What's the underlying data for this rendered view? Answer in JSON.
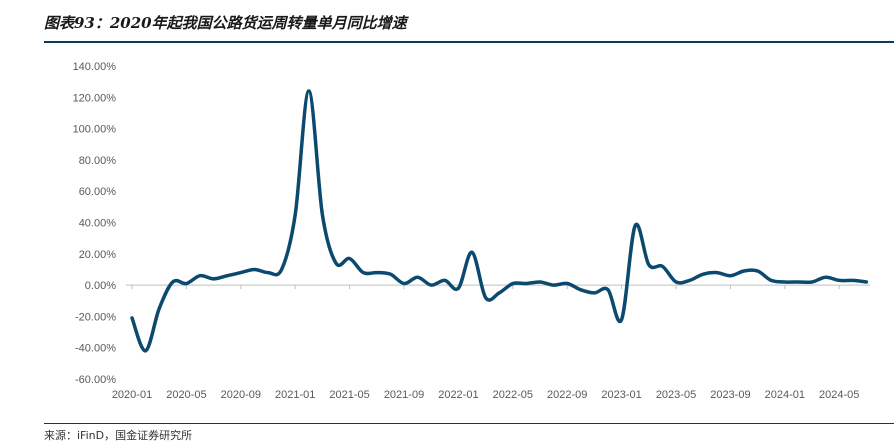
{
  "figure": {
    "title": "图表93：2020年起我国公路货运周转量单月同比增速",
    "source": "来源：iFinD，国金证券研究所"
  },
  "colors": {
    "line": "#0b4a6e",
    "axis": "#bfbfbf",
    "rule": "#0b3a5a"
  },
  "chart_data": {
    "type": "line",
    "title": "",
    "xlabel": "",
    "ylabel": "",
    "ylim": [
      -0.6,
      1.4
    ],
    "y_ticks": [
      -0.6,
      -0.4,
      -0.2,
      0.0,
      0.2,
      0.4,
      0.6,
      0.8,
      1.0,
      1.2,
      1.4
    ],
    "y_tick_labels": [
      "-60.00%",
      "-40.00%",
      "-20.00%",
      "0.00%",
      "20.00%",
      "40.00%",
      "60.00%",
      "80.00%",
      "100.00%",
      "120.00%",
      "140.00%"
    ],
    "x_tick_labels": [
      "2020-01",
      "2020-05",
      "2020-09",
      "2021-01",
      "2021-05",
      "2021-09",
      "2022-01",
      "2022-05",
      "2022-09",
      "2023-01",
      "2023-05",
      "2023-09",
      "2024-01",
      "2024-05"
    ],
    "grid": false,
    "legend": "none",
    "series": [
      {
        "values": [
          [
            0,
            -0.21
          ],
          [
            1,
            -0.42
          ],
          [
            2,
            -0.15
          ],
          [
            3,
            0.02
          ],
          [
            4,
            0.01
          ],
          [
            5,
            0.06
          ],
          [
            6,
            0.04
          ],
          [
            7,
            0.06
          ],
          [
            8,
            0.08
          ],
          [
            9,
            0.1
          ],
          [
            10,
            0.08
          ],
          [
            11,
            0.1
          ],
          [
            12,
            0.45
          ],
          [
            13,
            1.24
          ],
          [
            14,
            0.45
          ],
          [
            15,
            0.14
          ],
          [
            16,
            0.17
          ],
          [
            17,
            0.08
          ],
          [
            18,
            0.08
          ],
          [
            19,
            0.07
          ],
          [
            20,
            0.01
          ],
          [
            21,
            0.05
          ],
          [
            22,
            0.0
          ],
          [
            23,
            0.03
          ],
          [
            24,
            -0.02
          ],
          [
            25,
            0.21
          ],
          [
            26,
            -0.08
          ],
          [
            27,
            -0.05
          ],
          [
            28,
            0.01
          ],
          [
            29,
            0.01
          ],
          [
            30,
            0.02
          ],
          [
            31,
            0.0
          ],
          [
            32,
            0.01
          ],
          [
            33,
            -0.03
          ],
          [
            34,
            -0.05
          ],
          [
            35,
            -0.03
          ],
          [
            36,
            -0.22
          ],
          [
            37,
            0.38
          ],
          [
            38,
            0.13
          ],
          [
            39,
            0.12
          ],
          [
            40,
            0.02
          ],
          [
            41,
            0.03
          ],
          [
            42,
            0.07
          ],
          [
            43,
            0.08
          ],
          [
            44,
            0.06
          ],
          [
            45,
            0.09
          ],
          [
            46,
            0.09
          ],
          [
            47,
            0.03
          ],
          [
            48,
            0.02
          ],
          [
            49,
            0.02
          ],
          [
            50,
            0.02
          ],
          [
            51,
            0.05
          ],
          [
            52,
            0.03
          ],
          [
            53,
            0.03
          ],
          [
            54,
            0.02
          ]
        ]
      }
    ]
  }
}
